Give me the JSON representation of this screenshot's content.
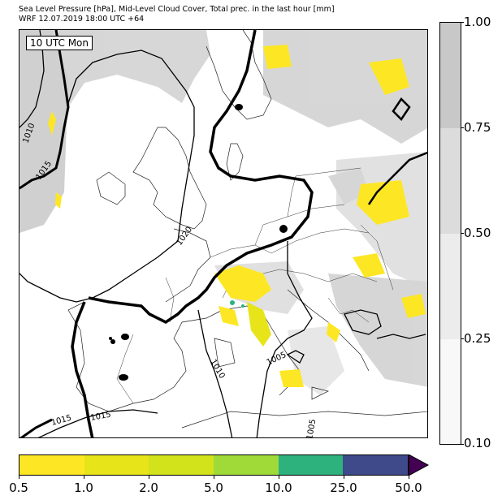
{
  "title": {
    "line1": "Sea Level Pressure [hPa], Mid-Level Cloud Cover, Total prec. in the last hour [mm]",
    "line2": "WRF 12.07.2019 18:00 UTC +64"
  },
  "map": {
    "time_label": "10 UTC Mon",
    "isobar_labels": [
      "1010",
      "1015",
      "1020",
      "1005",
      "1010",
      "1005",
      "1015",
      "1015"
    ],
    "isobar_style": "black contours, 1015 hPa thick"
  },
  "cloud_colorbar": {
    "ticks": [
      "1.00",
      "0.75",
      "0.50",
      "0.25",
      "0.10"
    ],
    "colors": [
      "#c8c8c8",
      "#dcdcdc",
      "#ececec",
      "#f8f8f8"
    ]
  },
  "precip_colorbar": {
    "ticks": [
      "0.5",
      "1.0",
      "2.0",
      "5.0",
      "10.0",
      "25.0",
      "50.0"
    ],
    "colors": [
      "#fde725",
      "#e7e419",
      "#d2e21b",
      "#a0da39",
      "#2db27d",
      "#3e4a89",
      "#440154"
    ]
  }
}
